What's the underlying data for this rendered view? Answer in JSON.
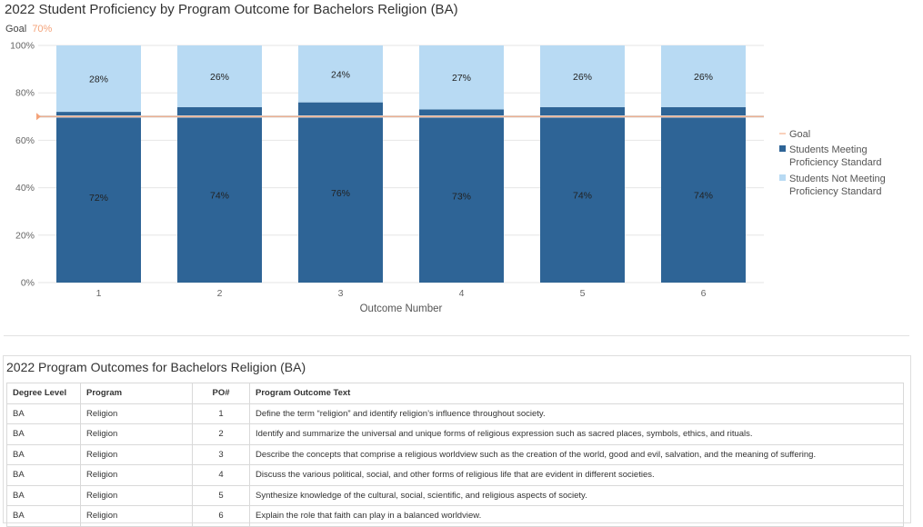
{
  "chart": {
    "title": "2022 Student Proficiency by Program Outcome for Bachelors Religion (BA)",
    "goal_label": "Goal",
    "goal_value": "70%"
  },
  "chart_data": {
    "type": "bar",
    "stacked": true,
    "categories": [
      "1",
      "2",
      "3",
      "4",
      "5",
      "6"
    ],
    "series": [
      {
        "name": "Students Meeting Proficiency Standard",
        "values": [
          72,
          74,
          76,
          73,
          74,
          74
        ],
        "color": "#2e6496",
        "labels": [
          "72%",
          "74%",
          "76%",
          "73%",
          "74%",
          "74%"
        ]
      },
      {
        "name": "Students Not Meeting Proficiency Standard",
        "values": [
          28,
          26,
          24,
          27,
          26,
          26
        ],
        "color": "#b8daf3",
        "labels": [
          "28%",
          "26%",
          "24%",
          "27%",
          "26%",
          "26%"
        ]
      }
    ],
    "goal": {
      "name": "Goal",
      "value": 70,
      "color": "#f4a37a"
    },
    "xlabel": "Outcome Number",
    "ylabel": "",
    "ylim": [
      0,
      100
    ],
    "yticks": [
      0,
      20,
      40,
      60,
      80,
      100
    ],
    "ytick_labels": [
      "0%",
      "20%",
      "40%",
      "60%",
      "80%",
      "100%"
    ],
    "grid": true,
    "legend_position": "right",
    "legend_labels": {
      "goal": "Goal",
      "meeting": [
        "Students Meeting",
        "Proficiency Standard"
      ],
      "not_meeting": [
        "Students Not Meeting",
        "Proficiency Standard"
      ]
    }
  },
  "outcomes_table": {
    "title": "2022 Program Outcomes for Bachelors Religion (BA)",
    "headers": [
      "Degree Level",
      "Program",
      "PO#",
      "Program Outcome Text"
    ],
    "rows": [
      [
        "BA",
        "Religion",
        "1",
        "Define the term “religion” and identify religion’s influence throughout society."
      ],
      [
        "BA",
        "Religion",
        "2",
        "Identify and summarize the universal and unique forms of religious expression such as sacred places, symbols, ethics, and rituals."
      ],
      [
        "BA",
        "Religion",
        "3",
        "Describe the concepts that comprise a religious worldview such as the creation of the world, good and evil, salvation, and the meaning of suffering."
      ],
      [
        "BA",
        "Religion",
        "4",
        "Discuss the various political, social, and other forms of religious life that are evident in different societies."
      ],
      [
        "BA",
        "Religion",
        "5",
        "Synthesize knowledge of the cultural, social, scientific, and religious aspects of society."
      ],
      [
        "BA",
        "Religion",
        "6",
        "Explain the role that faith can play in a balanced worldview."
      ]
    ]
  }
}
